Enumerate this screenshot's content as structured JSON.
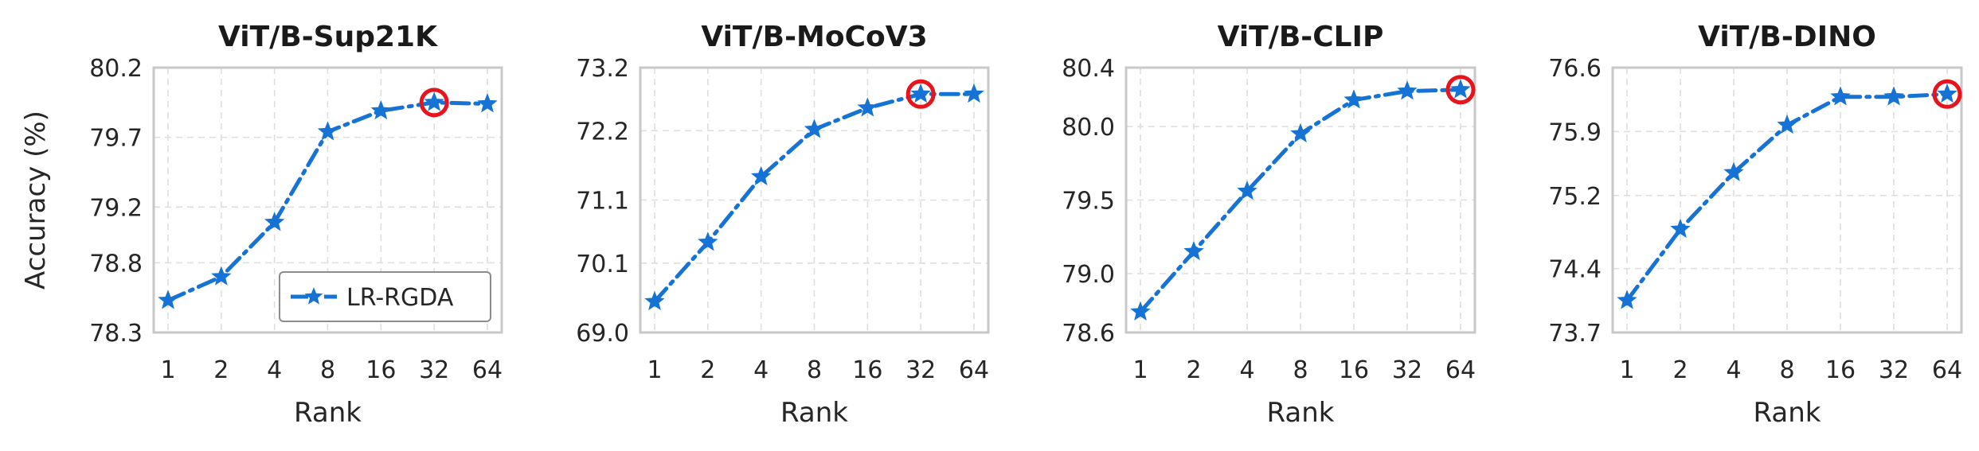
{
  "chart_data": [
    {
      "type": "line",
      "title": "ViT/B-Sup21K",
      "xlabel": "Rank",
      "ylabel": "Accuracy (%)",
      "x": [
        "1",
        "2",
        "4",
        "8",
        "16",
        "32",
        "64"
      ],
      "yticks": [
        "78.3",
        "78.8",
        "79.2",
        "79.7",
        "80.2"
      ],
      "ylim": [
        78.3,
        80.2
      ],
      "grid": true,
      "series": [
        {
          "name": "LR-RGDA",
          "values": [
            78.53,
            78.7,
            79.09,
            79.74,
            79.89,
            79.95,
            79.94
          ]
        }
      ],
      "highlight_index": 5,
      "legend": "bottom-right"
    },
    {
      "type": "line",
      "title": "ViT/B-MoCoV3",
      "xlabel": "Rank",
      "ylabel": "",
      "x": [
        "1",
        "2",
        "4",
        "8",
        "16",
        "32",
        "64"
      ],
      "yticks": [
        "69.0",
        "70.1",
        "71.1",
        "72.2",
        "73.2"
      ],
      "ylim": [
        69.0,
        73.2
      ],
      "grid": true,
      "series": [
        {
          "values": [
            69.49,
            70.43,
            71.47,
            72.22,
            72.56,
            72.78,
            72.78
          ]
        }
      ],
      "highlight_index": 5
    },
    {
      "type": "line",
      "title": "ViT/B-CLIP",
      "xlabel": "Rank",
      "ylabel": "",
      "x": [
        "1",
        "2",
        "4",
        "8",
        "16",
        "32",
        "64"
      ],
      "yticks": [
        "78.6",
        "79.0",
        "79.5",
        "80.0",
        "80.4"
      ],
      "ylim": [
        78.6,
        80.4
      ],
      "grid": true,
      "series": [
        {
          "values": [
            78.74,
            79.15,
            79.56,
            79.95,
            80.18,
            80.24,
            80.25
          ]
        }
      ],
      "highlight_index": 6
    },
    {
      "type": "line",
      "title": "ViT/B-DINO",
      "xlabel": "Rank",
      "ylabel": "",
      "x": [
        "1",
        "2",
        "4",
        "8",
        "16",
        "32",
        "64"
      ],
      "yticks": [
        "73.7",
        "74.4",
        "75.2",
        "75.9",
        "76.6"
      ],
      "ylim": [
        73.7,
        76.6
      ],
      "grid": true,
      "series": [
        {
          "values": [
            74.05,
            74.83,
            75.45,
            75.97,
            76.28,
            76.28,
            76.31
          ]
        }
      ],
      "highlight_index": 6
    }
  ],
  "colors": {
    "line": "#1673d6",
    "highlight": "#e8141c",
    "grid": "#dedede",
    "frame": "#c8c8c8"
  }
}
